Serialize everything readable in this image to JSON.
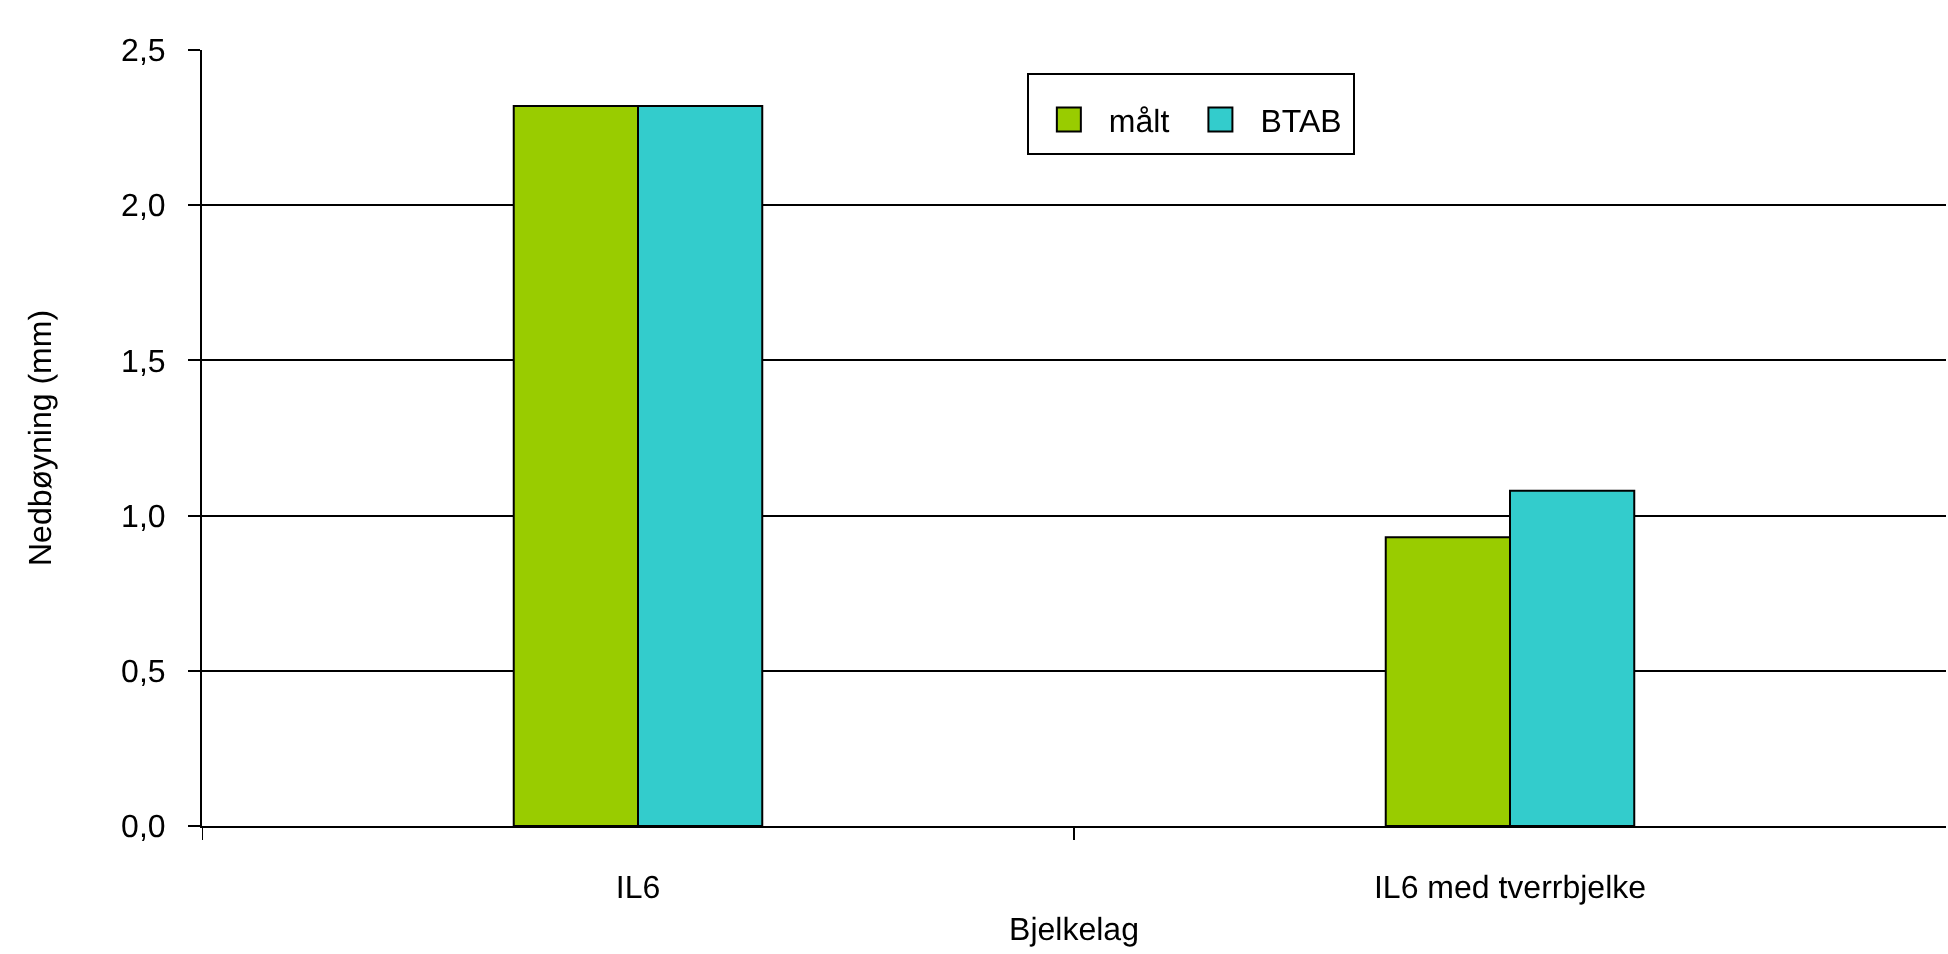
{
  "chart_data": {
    "type": "bar",
    "xlabel": "Bjelkelag",
    "ylabel": "Nedbøyning (mm)",
    "categories": [
      "IL6",
      "IL6 med tverrbjelke"
    ],
    "series": [
      {
        "name": "målt",
        "color": "#99cc00",
        "values": [
          2.32,
          0.93
        ]
      },
      {
        "name": "BTAB",
        "color": "#33cccc",
        "values": [
          2.32,
          1.08
        ]
      }
    ],
    "ylim": [
      0,
      2.5
    ],
    "yticks": [
      {
        "value": 0,
        "label": "0,0"
      },
      {
        "value": 0.5,
        "label": "0,5"
      },
      {
        "value": 1,
        "label": "1,0"
      },
      {
        "value": 1.5,
        "label": "1,5"
      },
      {
        "value": 2,
        "label": "2,0"
      },
      {
        "value": 2.5,
        "label": "2,5"
      }
    ],
    "grid": "y",
    "legend": "top"
  }
}
